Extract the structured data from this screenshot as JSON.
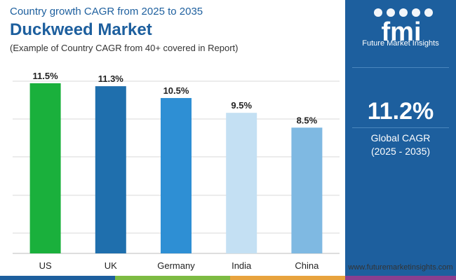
{
  "header": {
    "subtitle": "Country growth CAGR from 2025 to 2035",
    "title": "Duckweed Market",
    "note": "(Example of Country CAGR from 40+ covered in Report)"
  },
  "chart_data": {
    "type": "bar",
    "title": "Duckweed Market",
    "categories": [
      "US",
      "UK",
      "Germany",
      "India",
      "China"
    ],
    "values": [
      11.5,
      11.3,
      10.5,
      9.5,
      8.5
    ],
    "labels": [
      "11.5%",
      "11.3%",
      "10.5%",
      "9.5%",
      "8.5%"
    ],
    "colors": [
      "#1ab03c",
      "#1f6fad",
      "#2e8fd4",
      "#c4e0f3",
      "#7fb9e2"
    ],
    "ylim": [
      0,
      12.3
    ],
    "grid": true,
    "xlabel": "",
    "ylabel": ""
  },
  "sidebar": {
    "logo_text": "fmi",
    "logo_caption": "Future Market Insights",
    "global_value": "11.2%",
    "global_label": "Global CAGR",
    "global_period": "(2025 - 2035)",
    "website": "www.futuremarketinsights.com"
  },
  "colors": {
    "brand_blue": "#1d5f9e",
    "grid": "#d9d9d9",
    "footer": [
      "#1d5f9e",
      "#7dbb42",
      "#e8a33d",
      "#8a3f8f"
    ]
  }
}
